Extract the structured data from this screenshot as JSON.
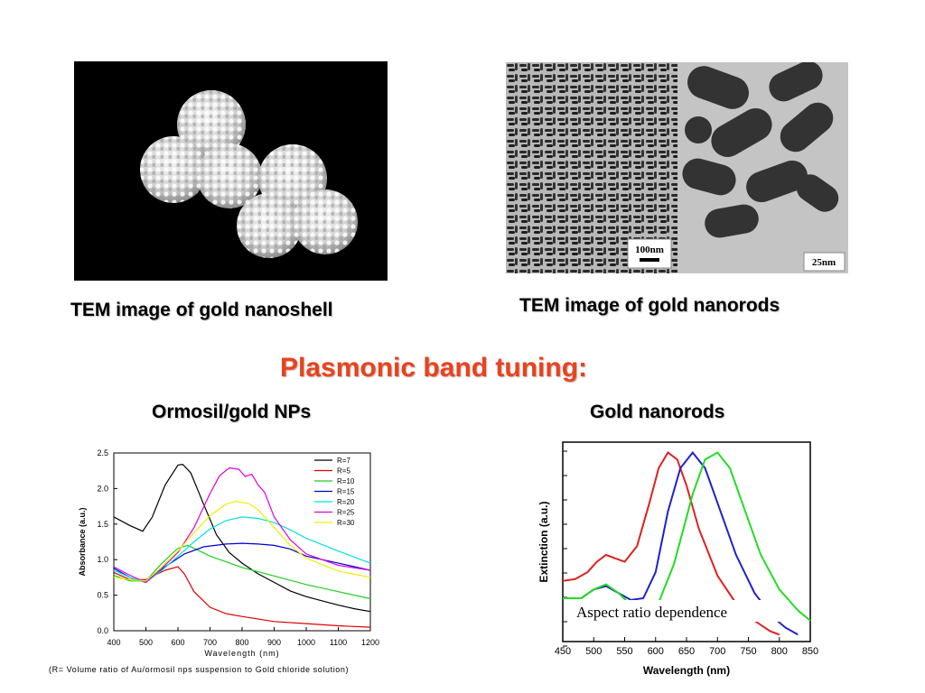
{
  "captions": {
    "nanoshell": "TEM image of gold nanoshell",
    "nanorods": "TEM image of gold nanorods"
  },
  "heading": "Plasmonic band tuning:",
  "subheadings": {
    "left": "Ormosil/gold NPs",
    "right": "Gold nanorods"
  },
  "tem_left": {
    "alt": "TEM image of gold nanoshell"
  },
  "tem_right": {
    "scale_left": "100nm",
    "scale_right": "25nm"
  },
  "chart_data": [
    {
      "type": "line",
      "xlabel": "Wavelength (nm)",
      "ylabel": "Absorbance (a.u.)",
      "xlim": [
        400,
        1200
      ],
      "ylim": [
        0,
        2.5
      ],
      "xticks": [
        400,
        500,
        600,
        700,
        800,
        900,
        1000,
        1100,
        1200
      ],
      "yticks": [
        0.0,
        0.5,
        1.0,
        1.5,
        2.0,
        2.5
      ],
      "ytick_labels": [
        "0.0",
        "0.5",
        "1.0",
        "1.5",
        "2.0",
        "2.5"
      ],
      "legend_position": "top-right",
      "footnote": "(R= Volume ratio of Au/ormosil nps suspension to Gold chloride solution)",
      "series": [
        {
          "name": "R=7",
          "color": "#000000",
          "x": [
            400,
            450,
            490,
            520,
            560,
            600,
            615,
            640,
            680,
            720,
            760,
            800,
            850,
            900,
            950,
            1000,
            1050,
            1100,
            1150,
            1200
          ],
          "y": [
            1.6,
            1.48,
            1.4,
            1.6,
            2.05,
            2.33,
            2.34,
            2.22,
            1.78,
            1.35,
            1.1,
            0.95,
            0.8,
            0.68,
            0.56,
            0.48,
            0.42,
            0.36,
            0.31,
            0.27
          ]
        },
        {
          "name": "R=5",
          "color": "#e00000",
          "x": [
            400,
            450,
            500,
            560,
            600,
            620,
            650,
            700,
            750,
            800,
            900,
            1000,
            1100,
            1200
          ],
          "y": [
            0.82,
            0.72,
            0.72,
            0.85,
            0.9,
            0.8,
            0.55,
            0.33,
            0.24,
            0.2,
            0.13,
            0.1,
            0.07,
            0.05
          ]
        },
        {
          "name": "R=10",
          "color": "#22cc22",
          "x": [
            400,
            450,
            500,
            550,
            600,
            630,
            650,
            700,
            800,
            900,
            1000,
            1100,
            1200
          ],
          "y": [
            0.78,
            0.7,
            0.7,
            0.95,
            1.16,
            1.2,
            1.16,
            1.05,
            0.89,
            0.77,
            0.65,
            0.55,
            0.45
          ]
        },
        {
          "name": "R=15",
          "color": "#0000cc",
          "x": [
            400,
            450,
            500,
            560,
            620,
            680,
            750,
            800,
            850,
            900,
            950,
            1000,
            1100,
            1200
          ],
          "y": [
            0.88,
            0.75,
            0.68,
            0.9,
            1.08,
            1.18,
            1.22,
            1.23,
            1.22,
            1.2,
            1.15,
            1.05,
            0.95,
            0.85
          ]
        },
        {
          "name": "R=20",
          "color": "#00e0e0",
          "x": [
            400,
            450,
            500,
            550,
            600,
            650,
            700,
            750,
            800,
            850,
            900,
            950,
            1000,
            1100,
            1200
          ],
          "y": [
            0.85,
            0.75,
            0.68,
            0.85,
            1.05,
            1.25,
            1.43,
            1.55,
            1.6,
            1.58,
            1.52,
            1.42,
            1.3,
            1.12,
            0.95
          ]
        },
        {
          "name": "R=25",
          "color": "#dd00dd",
          "x": [
            400,
            450,
            500,
            550,
            600,
            650,
            700,
            730,
            760,
            790,
            810,
            830,
            850,
            870,
            900,
            950,
            1000,
            1100,
            1200
          ],
          "y": [
            0.9,
            0.78,
            0.68,
            0.88,
            1.1,
            1.45,
            1.93,
            2.18,
            2.29,
            2.27,
            2.17,
            2.2,
            2.05,
            1.95,
            1.6,
            1.28,
            1.08,
            0.92,
            0.85
          ]
        },
        {
          "name": "R=30",
          "color": "#eeee00",
          "x": [
            400,
            450,
            500,
            550,
            600,
            650,
            700,
            750,
            780,
            820,
            850,
            900,
            950,
            1000,
            1100,
            1200
          ],
          "y": [
            0.75,
            0.72,
            0.7,
            0.9,
            1.12,
            1.38,
            1.62,
            1.78,
            1.82,
            1.79,
            1.7,
            1.45,
            1.2,
            1.02,
            0.84,
            0.75
          ]
        }
      ]
    },
    {
      "type": "line",
      "xlabel": "Wavelength (nm)",
      "ylabel": "Extinction (a.u.)",
      "xlim": [
        450,
        850
      ],
      "ylim": [
        0,
        1.15
      ],
      "xticks": [
        450,
        500,
        550,
        600,
        650,
        700,
        750,
        800,
        850
      ],
      "yticks": [],
      "annotation": "Aspect ratio dependence",
      "series": [
        {
          "color": "#e02020",
          "x": [
            450,
            470,
            490,
            505,
            520,
            535,
            550,
            570,
            590,
            605,
            620,
            635,
            650,
            670,
            700,
            730,
            760,
            785,
            800
          ],
          "y": [
            0.35,
            0.36,
            0.4,
            0.46,
            0.5,
            0.48,
            0.46,
            0.55,
            0.8,
            1.0,
            1.09,
            1.05,
            0.9,
            0.65,
            0.38,
            0.22,
            0.12,
            0.06,
            0.04
          ]
        },
        {
          "color": "#2020cc",
          "x": [
            450,
            480,
            500,
            520,
            540,
            560,
            580,
            600,
            620,
            640,
            660,
            680,
            700,
            730,
            760,
            790,
            810,
            830
          ],
          "y": [
            0.25,
            0.25,
            0.3,
            0.32,
            0.28,
            0.24,
            0.25,
            0.4,
            0.75,
            1.0,
            1.09,
            1.0,
            0.8,
            0.5,
            0.28,
            0.14,
            0.08,
            0.04
          ]
        },
        {
          "color": "#22dd22",
          "x": [
            450,
            480,
            500,
            520,
            540,
            560,
            580,
            600,
            630,
            660,
            680,
            700,
            720,
            740,
            770,
            800,
            830,
            850
          ],
          "y": [
            0.25,
            0.25,
            0.3,
            0.33,
            0.28,
            0.21,
            0.16,
            0.18,
            0.45,
            0.85,
            1.05,
            1.09,
            1.0,
            0.8,
            0.5,
            0.3,
            0.18,
            0.12
          ]
        }
      ]
    }
  ]
}
